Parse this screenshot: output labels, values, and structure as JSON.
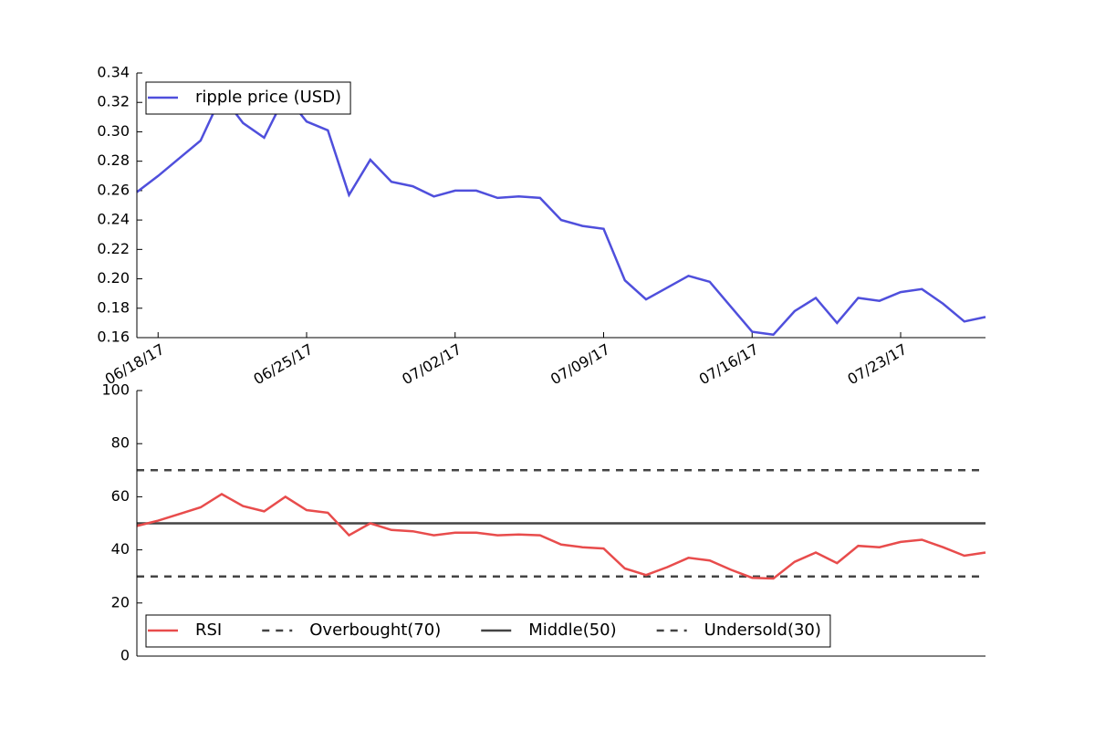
{
  "chart_data": [
    {
      "type": "line",
      "x": [
        "2017-06-17",
        "2017-06-18",
        "2017-06-19",
        "2017-06-20",
        "2017-06-21",
        "2017-06-22",
        "2017-06-23",
        "2017-06-24",
        "2017-06-25",
        "2017-06-26",
        "2017-06-27",
        "2017-06-28",
        "2017-06-29",
        "2017-06-30",
        "2017-07-01",
        "2017-07-02",
        "2017-07-03",
        "2017-07-04",
        "2017-07-05",
        "2017-07-06",
        "2017-07-07",
        "2017-07-08",
        "2017-07-09",
        "2017-07-10",
        "2017-07-11",
        "2017-07-12",
        "2017-07-13",
        "2017-07-14",
        "2017-07-15",
        "2017-07-16",
        "2017-07-17",
        "2017-07-18",
        "2017-07-19",
        "2017-07-20",
        "2017-07-21",
        "2017-07-22",
        "2017-07-23",
        "2017-07-24",
        "2017-07-25",
        "2017-07-26",
        "2017-07-27"
      ],
      "series": [
        {
          "name": "ripple price (USD)",
          "color": "#4f4fdc",
          "values": [
            0.259,
            0.27,
            0.282,
            0.294,
            0.325,
            0.306,
            0.296,
            0.325,
            0.307,
            0.301,
            0.257,
            0.281,
            0.266,
            0.263,
            0.256,
            0.26,
            0.26,
            0.255,
            0.256,
            0.255,
            0.24,
            0.236,
            0.234,
            0.199,
            0.186,
            0.194,
            0.202,
            0.198,
            0.181,
            0.164,
            0.162,
            0.178,
            0.187,
            0.17,
            0.187,
            0.185,
            0.191,
            0.193,
            0.183,
            0.171,
            0.174
          ]
        }
      ],
      "xlim": [
        "2017-06-17",
        "2017-07-27"
      ],
      "xticks": [
        {
          "value": "2017-06-18",
          "label": "06/18/17"
        },
        {
          "value": "2017-06-25",
          "label": "06/25/17"
        },
        {
          "value": "2017-07-02",
          "label": "07/02/17"
        },
        {
          "value": "2017-07-09",
          "label": "07/09/17"
        },
        {
          "value": "2017-07-16",
          "label": "07/16/17"
        },
        {
          "value": "2017-07-23",
          "label": "07/23/17"
        }
      ],
      "ylim": [
        0.16,
        0.34
      ],
      "yticks": [
        0.16,
        0.18,
        {
          "value": 0.2,
          "label": "0.20"
        },
        0.22,
        0.24,
        0.26,
        0.28,
        {
          "value": 0.3,
          "label": "0.30"
        },
        0.32,
        0.34
      ],
      "legend": "upper left"
    },
    {
      "type": "line",
      "x": [
        "2017-06-17",
        "2017-06-18",
        "2017-06-19",
        "2017-06-20",
        "2017-06-21",
        "2017-06-22",
        "2017-06-23",
        "2017-06-24",
        "2017-06-25",
        "2017-06-26",
        "2017-06-27",
        "2017-06-28",
        "2017-06-29",
        "2017-06-30",
        "2017-07-01",
        "2017-07-02",
        "2017-07-03",
        "2017-07-04",
        "2017-07-05",
        "2017-07-06",
        "2017-07-07",
        "2017-07-08",
        "2017-07-09",
        "2017-07-10",
        "2017-07-11",
        "2017-07-12",
        "2017-07-13",
        "2017-07-14",
        "2017-07-15",
        "2017-07-16",
        "2017-07-17",
        "2017-07-18",
        "2017-07-19",
        "2017-07-20",
        "2017-07-21",
        "2017-07-22",
        "2017-07-23",
        "2017-07-24",
        "2017-07-25",
        "2017-07-26",
        "2017-07-27"
      ],
      "series": [
        {
          "name": "RSI",
          "color": "#e84c4c",
          "values": [
            49,
            51,
            53.5,
            56,
            61,
            56.5,
            54.5,
            60,
            55,
            54,
            45.5,
            50,
            47.5,
            47,
            45.5,
            46.5,
            46.5,
            45.5,
            45.8,
            45.5,
            42,
            41,
            40.5,
            33,
            30.5,
            33.5,
            37,
            36,
            32.5,
            29.5,
            29.2,
            35.5,
            39,
            35,
            41.5,
            41,
            43,
            43.8,
            41,
            37.8,
            39
          ]
        }
      ],
      "hlines": [
        {
          "name": "Overbought(70)",
          "value": 70,
          "color": "#444444",
          "style": "dashed"
        },
        {
          "name": "Middle(50)",
          "value": 50,
          "color": "#444444",
          "style": "solid"
        },
        {
          "name": "Undersold(30)",
          "value": 30,
          "color": "#444444",
          "style": "dashed"
        }
      ],
      "xlim": [
        "2017-06-17",
        "2017-07-27"
      ],
      "ylim": [
        0,
        100
      ],
      "yticks": [
        0,
        20,
        40,
        60,
        80,
        100
      ],
      "legend": "lower left"
    }
  ]
}
